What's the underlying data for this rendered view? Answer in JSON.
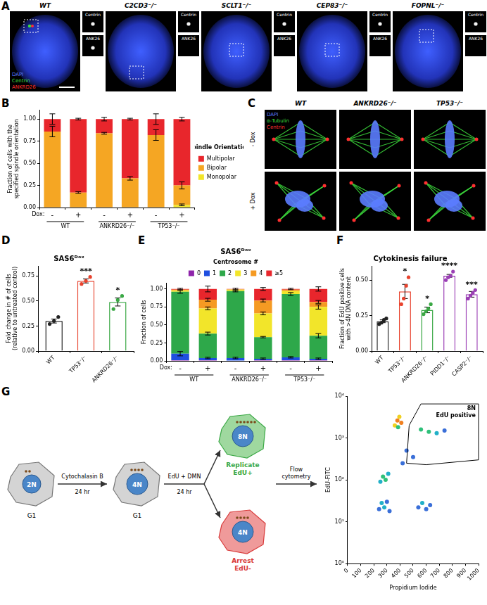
{
  "figure_panels": {
    "A": {
      "label": "A",
      "genotypes": [
        "WT",
        "C2CD3⁻/⁻",
        "SCLT1⁻/⁻",
        "CEP83⁻/⁻",
        "FOPNL⁻/⁻"
      ],
      "channels": [
        {
          "name": "DAPI",
          "color": "#5b7cff"
        },
        {
          "name": "Centrin",
          "color": "#3ddc3d"
        },
        {
          "name": "ANKRD26",
          "color": "#ff3030"
        }
      ],
      "inset_labels": [
        "Centrin",
        "ANK26"
      ]
    },
    "C": {
      "label": "C",
      "genotypes": [
        "WT",
        "ANKRD26⁻/⁻",
        "TP53⁻/⁻"
      ],
      "conditions": [
        "- Dox",
        "+ Dox"
      ],
      "channels": [
        {
          "name": "DAPI",
          "color": "#5b7cff"
        },
        {
          "name": "α-Tubulin",
          "color": "#3ddc3d"
        },
        {
          "name": "Centrin",
          "color": "#ff3030"
        }
      ]
    },
    "G": {
      "label": "G",
      "start": {
        "ploidy": "2N",
        "phase": "G1"
      },
      "step1": {
        "treatment": "Cytochalasin B",
        "duration": "24 hr"
      },
      "middle": {
        "ploidy": "4N",
        "phase": "G1"
      },
      "step2": {
        "treatment": "EdU + DMN",
        "duration": "24 hr"
      },
      "outcomes": [
        {
          "ploidy": "8N",
          "fate": "Replicate",
          "marker": "EdU+",
          "color": "#3aa845"
        },
        {
          "ploidy": "4N",
          "fate": "Arrest",
          "marker": "EdU-",
          "color": "#d83a3a"
        }
      ],
      "step3": [
        "Flow",
        "cytometry"
      ]
    }
  },
  "chart_data": [
    {
      "panel": "B",
      "type": "bar",
      "stacked": true,
      "categories": [
        "-",
        "+",
        "-",
        "+",
        "-",
        "+"
      ],
      "groups": [
        "WT",
        "ANKRD26⁻/⁻",
        "TP53⁻/⁻"
      ],
      "x_prefix": "Dox:",
      "y_label": [
        "Fraction of cells with the",
        "specified spindle orientation"
      ],
      "ylim": [
        0,
        1.1
      ],
      "yticks": [
        {
          "value": 0,
          "label": "0.00"
        },
        0.25,
        {
          "value": 0.5,
          "label": "0.50"
        },
        0.75,
        {
          "value": 1,
          "label": "1.00"
        }
      ],
      "grid": false,
      "legend": "right",
      "legend_title": "Spindle Orientation",
      "series": [
        {
          "name": "Monopolar",
          "color": "#f2e52a",
          "values": [
            0,
            0,
            0,
            0,
            0,
            0.03
          ],
          "errors": [
            0,
            0,
            0,
            0,
            0,
            0.01
          ]
        },
        {
          "name": "Bipolar",
          "color": "#f5a623",
          "values": [
            0.86,
            0.17,
            0.84,
            0.33,
            0.82,
            0.22
          ],
          "errors": [
            0.06,
            0.01,
            0.01,
            0.02,
            0.06,
            0.04
          ]
        },
        {
          "name": "Multipolar",
          "color": "#e8262c",
          "values": [
            0.14,
            0.83,
            0.16,
            0.67,
            0.18,
            0.75
          ],
          "errors": [
            0.06,
            0.01,
            0.02,
            0.01,
            0.06,
            0.02
          ]
        }
      ]
    },
    {
      "panel": "D",
      "type": "bar",
      "title": "SAS6ᴰᵒˣ",
      "categories": [
        "WT",
        "TP53⁻/⁻",
        "ANKRD26⁻/⁻"
      ],
      "values": [
        0.3,
        0.7,
        0.49
      ],
      "errors": [
        0.02,
        0.02,
        0.04
      ],
      "points": [
        [
          0.27,
          0.3,
          0.34
        ],
        [
          0.67,
          0.7,
          0.74
        ],
        [
          0.42,
          0.51,
          0.55
        ]
      ],
      "significance": [
        null,
        "***",
        "*"
      ],
      "colors": [
        "#222222",
        "#e8432e",
        "#3aa845"
      ],
      "y_label": [
        "Fold change in # of cells",
        "(relative to untreated control)"
      ],
      "ylim": [
        0,
        0.85
      ],
      "yticks": [
        {
          "value": 0,
          "label": "0.00"
        },
        0.25,
        {
          "value": 0.5,
          "label": "0.50"
        },
        0.75
      ],
      "grid": false
    },
    {
      "panel": "E",
      "type": "bar",
      "stacked": true,
      "title": "SAS6ᴰᵒˣ",
      "categories": [
        "-",
        "+",
        "-",
        "+",
        "-",
        "+"
      ],
      "groups": [
        "WT",
        "ANKRD26⁻/⁻",
        "TP53⁻/⁻"
      ],
      "x_prefix": "Dox:",
      "y_label": "Fraction of cells",
      "ylim": [
        0,
        1.08
      ],
      "yticks": [
        {
          "value": 0,
          "label": "0.00"
        },
        0.25,
        {
          "value": 0.5,
          "label": "0.50"
        },
        0.75,
        {
          "value": 1,
          "label": "1.00"
        }
      ],
      "grid": false,
      "legend": "top",
      "legend_title": "Centrosome #",
      "series": [
        {
          "name": "0",
          "color": "#8e24aa",
          "values": [
            0.01,
            0.01,
            0,
            0.01,
            0.01,
            0.01
          ],
          "errors": [
            0,
            0,
            0,
            0,
            0,
            0
          ]
        },
        {
          "name": "1",
          "color": "#1f4fe0",
          "values": [
            0.09,
            0.03,
            0.04,
            0.02,
            0.04,
            0.02
          ],
          "errors": [
            0.03,
            0.01,
            0.01,
            0.01,
            0.01,
            0.01
          ]
        },
        {
          "name": "2",
          "color": "#2ea84a",
          "values": [
            0.86,
            0.34,
            0.93,
            0.3,
            0.88,
            0.32
          ],
          "errors": [
            0.02,
            0.02,
            0.01,
            0.01,
            0.02,
            0.03
          ]
        },
        {
          "name": "3",
          "color": "#f2e52a",
          "values": [
            0.02,
            0.35,
            0.02,
            0.33,
            0.04,
            0.4
          ],
          "errors": [
            0,
            0.02,
            0,
            0.02,
            0,
            0.03
          ]
        },
        {
          "name": "4",
          "color": "#f59a23",
          "values": [
            0.01,
            0.12,
            0.005,
            0.18,
            0.02,
            0.07
          ],
          "errors": [
            0,
            0.02,
            0,
            0.02,
            0,
            0.02
          ]
        },
        {
          "name": "≥5",
          "color": "#e8262c",
          "values": [
            0.01,
            0.15,
            0.005,
            0.16,
            0.01,
            0.18
          ],
          "errors": [
            0.01,
            0.04,
            0.01,
            0.02,
            0.01,
            0.03
          ]
        }
      ]
    },
    {
      "panel": "F",
      "type": "bar",
      "title": "Cytokinesis failure",
      "categories": [
        "WT",
        "TP53⁻/⁻",
        "ANKRD26⁻/⁻",
        "PIDD1⁻/⁻",
        "CASP2⁻/⁻"
      ],
      "values": [
        0.21,
        0.42,
        0.29,
        0.53,
        0.4
      ],
      "errors": [
        0.01,
        0.05,
        0.02,
        0.01,
        0.02
      ],
      "points": [
        [
          0.19,
          0.2,
          0.22,
          0.23
        ],
        [
          0.33,
          0.37,
          0.46,
          0.52
        ],
        [
          0.26,
          0.28,
          0.3,
          0.33
        ],
        [
          0.5,
          0.52,
          0.53,
          0.56
        ],
        [
          0.37,
          0.39,
          0.41,
          0.43
        ]
      ],
      "significance": [
        null,
        "*",
        "*",
        "****",
        "***"
      ],
      "colors": [
        "#222222",
        "#e8432e",
        "#3aa845",
        "#9b3fb5",
        "#9b3fb5"
      ],
      "y_label": [
        "Fraction of EdU positive cells",
        "with >4N DNA content"
      ],
      "ylim": [
        0,
        0.6
      ],
      "yticks": [
        {
          "value": 0,
          "label": "0.00"
        },
        0.25,
        {
          "value": 0.5,
          "label": "0.50"
        }
      ],
      "grid": false
    },
    {
      "type": "scatter",
      "log": "y",
      "x_label": "Propidium Iodide",
      "y_label": "EdU-FITC",
      "xlim": [
        0,
        1000
      ],
      "xticks": [
        0,
        100,
        200,
        300,
        400,
        500,
        600,
        700,
        800,
        900,
        1000
      ],
      "ylim": [
        1,
        10000
      ],
      "yticks": [
        {
          "value": 1,
          "label": "10⁰"
        },
        {
          "value": 10,
          "label": "10¹"
        },
        {
          "value": 100,
          "label": "10²"
        },
        {
          "value": 1000,
          "label": "10³"
        },
        {
          "value": 10000,
          "label": "10⁴"
        }
      ],
      "grid": false,
      "x": [
        240,
        260,
        280,
        300,
        320,
        250,
        270,
        290,
        310,
        540,
        570,
        600,
        630,
        360,
        380,
        395,
        410,
        385,
        560,
        620,
        680,
        740,
        450,
        500,
        420
      ],
      "values": [
        20,
        28,
        22,
        30,
        18,
        90,
        120,
        100,
        140,
        22,
        28,
        20,
        25,
        2000,
        2600,
        3200,
        2300,
        1800,
        1600,
        1400,
        1300,
        1500,
        500,
        350,
        250
      ],
      "colors": [
        "#3a6fd8",
        "#22b0c8",
        "#22b0c8",
        "#3a6fd8",
        "#3a6fd8",
        "#22b0c8",
        "#2fc07a",
        "#2fc07a",
        "#22b0c8",
        "#3a6fd8",
        "#22b0c8",
        "#3a6fd8",
        "#3a6fd8",
        "#f0d020",
        "#f08020",
        "#f0d020",
        "#f08020",
        "#2fc07a",
        "#2fc07a",
        "#2fc07a",
        "#22b0c8",
        "#3a6fd8",
        "#3a6fd8",
        "#3a6fd8",
        "#3a6fd8"
      ],
      "gate": {
        "label": [
          "8N",
          "EdU positive"
        ],
        "x": [
          450,
          470,
          560,
          1000,
          1000,
          600
        ],
        "y": [
          250,
          2000,
          6500,
          6500,
          300,
          230
        ]
      }
    }
  ]
}
